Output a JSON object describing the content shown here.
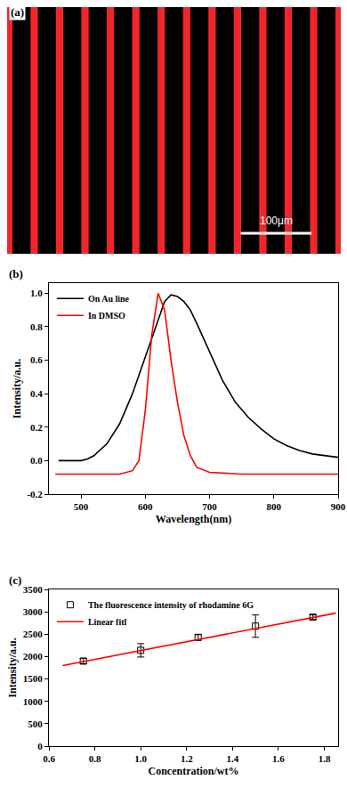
{
  "chart_data": [
    {
      "type": "image",
      "label": "(a)",
      "scale_bar": "100μm"
    },
    {
      "type": "line",
      "label": "(b)",
      "xlabel": "Wavelength(nm)",
      "ylabel": "Intensity/a.u.",
      "xlim": [
        450,
        900
      ],
      "xticks": [
        500,
        600,
        700,
        800,
        900
      ],
      "ylim": [
        -0.2,
        1.06
      ],
      "yticks": [
        -0.2,
        {
          "value": 0,
          "label": "0.0"
        },
        0.2,
        0.4,
        0.6,
        0.8,
        {
          "value": 1,
          "label": "1.0"
        }
      ],
      "grid": false,
      "legend": "top left",
      "series": [
        {
          "name": "On Au line",
          "color": "#000000",
          "line_style": "solid",
          "x": [
            465,
            480,
            500,
            510,
            520,
            540,
            560,
            580,
            600,
            620,
            630,
            640,
            650,
            660,
            670,
            680,
            700,
            720,
            740,
            760,
            780,
            800,
            820,
            840,
            860,
            880,
            900
          ],
          "values": [
            0,
            0,
            0,
            0.01,
            0.03,
            0.1,
            0.22,
            0.4,
            0.62,
            0.85,
            0.95,
            0.99,
            0.98,
            0.95,
            0.9,
            0.82,
            0.65,
            0.48,
            0.35,
            0.26,
            0.19,
            0.13,
            0.09,
            0.06,
            0.04,
            0.03,
            0.02
          ]
        },
        {
          "name": "In DMSO",
          "color": "#ff0000",
          "line_style": "solid",
          "x": [
            460,
            520,
            560,
            580,
            590,
            600,
            610,
            620,
            630,
            640,
            650,
            660,
            670,
            680,
            700,
            750,
            800,
            900
          ],
          "values": [
            -0.08,
            -0.08,
            -0.08,
            -0.06,
            0.0,
            0.3,
            0.75,
            1.0,
            0.9,
            0.6,
            0.35,
            0.15,
            0.03,
            -0.04,
            -0.07,
            -0.08,
            -0.08,
            -0.08
          ]
        }
      ]
    },
    {
      "type": "scatter",
      "label": "(c)",
      "xlabel": "Concentration/wt%",
      "ylabel": "Intensity/a.u.",
      "xlim": [
        0.6,
        1.86
      ],
      "xticks": [
        0.6,
        0.8,
        {
          "value": 1,
          "label": "1.0"
        },
        1.2,
        1.4,
        1.6,
        1.8
      ],
      "ylim": [
        0,
        3500
      ],
      "yticks": [
        0,
        500,
        1000,
        1500,
        2000,
        2500,
        3000,
        3500
      ],
      "grid": false,
      "legend": "top left",
      "series": [
        {
          "name": "The fluorescence intensity of rhodamine 6G",
          "type": "scatter",
          "color": "#000000",
          "marker": "square-open",
          "x": [
            0.75,
            1.0,
            1.25,
            1.5,
            1.75
          ],
          "values": [
            1900,
            2140,
            2430,
            2680,
            2880
          ],
          "errors": [
            60,
            150,
            60,
            250,
            50
          ]
        },
        {
          "name": "Linear fitl",
          "type": "line",
          "color": "#ff0000",
          "line_style": "solid",
          "x": [
            0.66,
            1.85
          ],
          "values": [
            1800,
            2970
          ]
        }
      ]
    }
  ]
}
